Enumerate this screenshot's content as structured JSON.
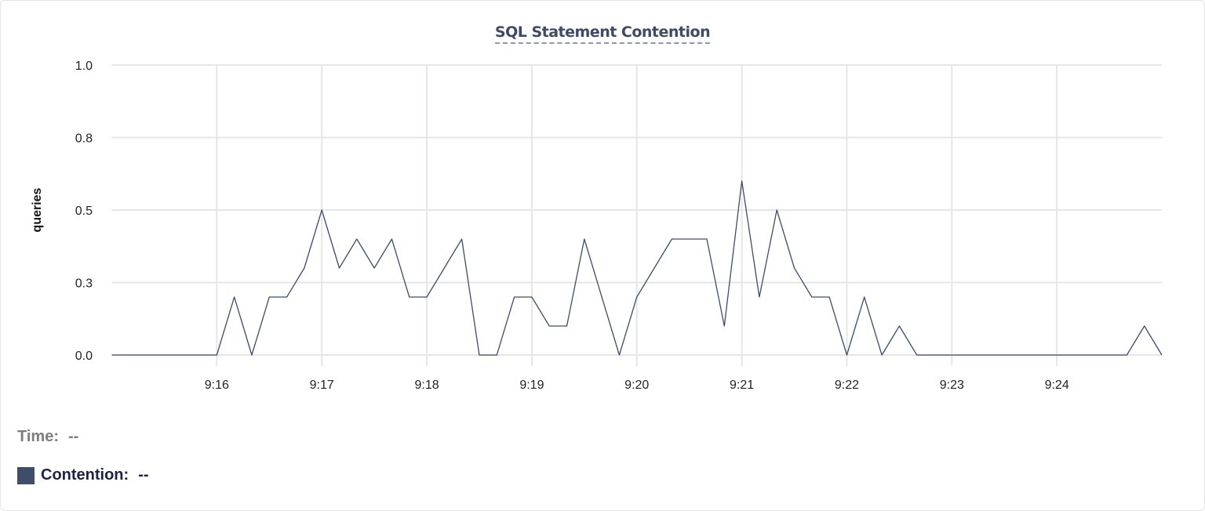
{
  "chart_data": {
    "type": "line",
    "title": "SQL Statement Contention",
    "xlabel": "",
    "ylabel": "queries",
    "x_start": "9:15:00",
    "x_end": "9:25:00",
    "x_step_seconds": 10,
    "xticks": [
      "9:16",
      "9:17",
      "9:18",
      "9:19",
      "9:20",
      "9:21",
      "9:22",
      "9:23",
      "9:24"
    ],
    "yticks": [
      {
        "value": 0,
        "label": "0.0"
      },
      {
        "value": 0.25,
        "label": "0.3"
      },
      {
        "value": 0.5,
        "label": "0.5"
      },
      {
        "value": 0.75,
        "label": "0.8"
      },
      {
        "value": 1.0,
        "label": "1.0"
      }
    ],
    "ylim": [
      0,
      1.0
    ],
    "grid": true,
    "series": [
      {
        "name": "Contention",
        "color": "#3e4d6a",
        "values": [
          0,
          0,
          0,
          0,
          0,
          0,
          0,
          0.2,
          0,
          0.2,
          0.2,
          0.3,
          0.5,
          0.3,
          0.4,
          0.3,
          0.4,
          0.2,
          0.2,
          0.3,
          0.4,
          0,
          0,
          0.2,
          0.2,
          0.1,
          0.1,
          0.4,
          0.2,
          0,
          0.2,
          0.3,
          0.4,
          0.4,
          0.4,
          0.1,
          0.6,
          0.2,
          0.5,
          0.3,
          0.2,
          0.2,
          0,
          0.2,
          0,
          0.1,
          0,
          0,
          0,
          0,
          0,
          0,
          0,
          0,
          0,
          0,
          0,
          0,
          0,
          0.1,
          0
        ]
      }
    ]
  },
  "legend": {
    "time_label": "Time:",
    "time_value": "--",
    "series_label": "Contention:",
    "series_value": "--"
  }
}
